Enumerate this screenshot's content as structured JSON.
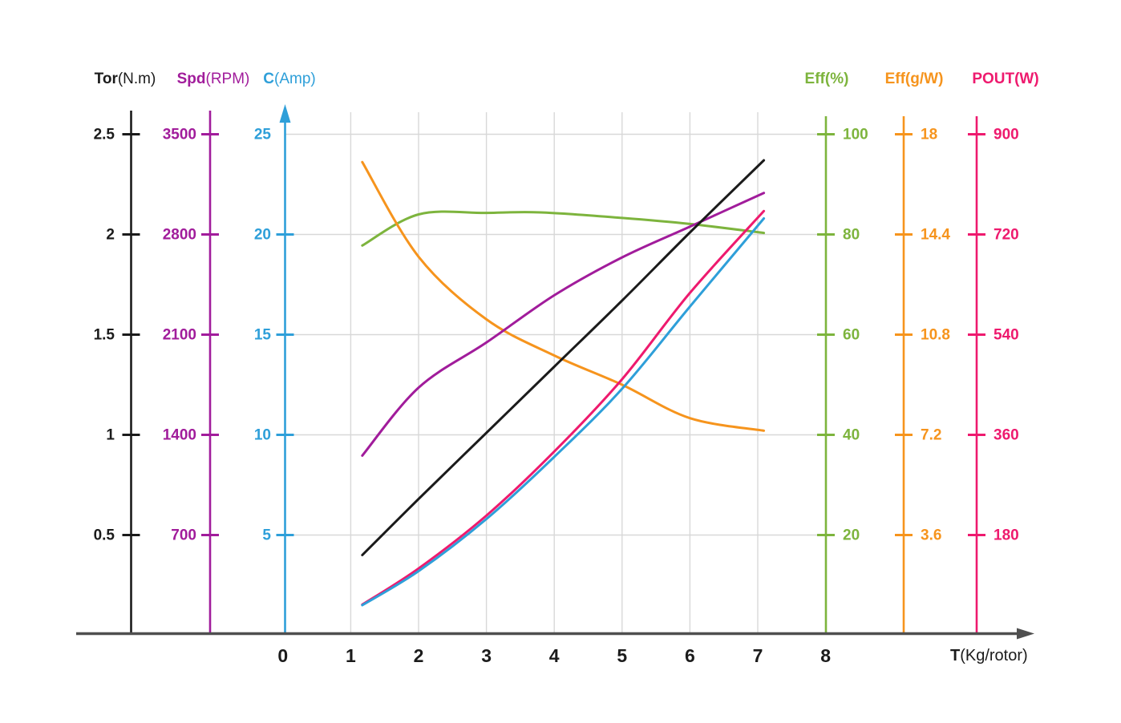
{
  "axes": {
    "left": [
      {
        "name": "torque",
        "label_bold": "Tor",
        "label_rest": "(N.m)",
        "color": "#1b1b1b",
        "ticks": [
          "2.5",
          "2",
          "1.5",
          "1",
          "0.5"
        ],
        "step": 0.5
      },
      {
        "name": "speed",
        "label_bold": "Spd",
        "label_rest": "(RPM)",
        "color": "#a11c9b",
        "ticks": [
          "3500",
          "2800",
          "2100",
          "1400",
          "700"
        ],
        "step": 700
      },
      {
        "name": "current",
        "label_bold": "C",
        "label_rest": "(Amp)",
        "color": "#2e9fd9",
        "ticks": [
          "25",
          "20",
          "15",
          "10",
          "5"
        ],
        "step": 5
      }
    ],
    "right": [
      {
        "name": "efficiency-percent",
        "label_bold": "Eff",
        "label_rest": "(%)",
        "color": "#7db43d",
        "ticks": [
          "100",
          "80",
          "60",
          "40",
          "20"
        ],
        "step": 20
      },
      {
        "name": "efficiency-g-per-w",
        "label_bold": "Eff",
        "label_rest": "(g/W)",
        "color": "#f6941d",
        "ticks": [
          "18",
          "14.4",
          "10.8",
          "7.2",
          "3.6"
        ],
        "step": 3.6
      },
      {
        "name": "power-output",
        "label_bold": "POUT",
        "label_rest": "(W)",
        "color": "#ee1a6e",
        "ticks": [
          "900",
          "720",
          "540",
          "360",
          "180"
        ],
        "step": 180
      }
    ],
    "x": {
      "title_bold": "T",
      "title_rest": "(Kg/rotor)",
      "ticks": [
        "0",
        "1",
        "2",
        "3",
        "4",
        "5",
        "6",
        "7",
        "8"
      ]
    }
  },
  "chart_data": {
    "type": "line",
    "xlabel": "T (Kg/rotor)",
    "x_range": [
      0,
      8
    ],
    "grid": true,
    "series": [
      {
        "name": "efficiency-percent",
        "axis": "Eff (%)",
        "color": "#7db43d",
        "step": 20,
        "points": [
          [
            1.17,
            77.8
          ],
          [
            2,
            84.0
          ],
          [
            3,
            84.3
          ],
          [
            3.8,
            84.4
          ],
          [
            5,
            83.3
          ],
          [
            6,
            82.1
          ],
          [
            7.09,
            80.3
          ]
        ]
      },
      {
        "name": "efficiency-g-per-w",
        "axis": "Eff (g/W)",
        "color": "#f6941d",
        "step": 3.6,
        "points": [
          [
            1.17,
            17.0
          ],
          [
            2,
            13.6
          ],
          [
            3,
            11.35
          ],
          [
            4,
            10.05
          ],
          [
            5,
            9.0
          ],
          [
            6,
            7.8
          ],
          [
            7.09,
            7.35
          ]
        ]
      },
      {
        "name": "speed",
        "axis": "Spd (RPM)",
        "color": "#a11c9b",
        "step": 700,
        "points": [
          [
            1.17,
            1255
          ],
          [
            2,
            1730
          ],
          [
            3,
            2045
          ],
          [
            4,
            2375
          ],
          [
            5,
            2640
          ],
          [
            6,
            2855
          ],
          [
            7.09,
            3090
          ]
        ]
      },
      {
        "name": "power-output",
        "axis": "POUT (W)",
        "color": "#ee1a6e",
        "step": 180,
        "points": [
          [
            1.17,
            55
          ],
          [
            2,
            120
          ],
          [
            3,
            215
          ],
          [
            4,
            330
          ],
          [
            5,
            460
          ],
          [
            6,
            615
          ],
          [
            7.09,
            762
          ]
        ]
      },
      {
        "name": "current",
        "axis": "C (Amp)",
        "color": "#2e9fd9",
        "step": 5,
        "points": [
          [
            1.17,
            1.5
          ],
          [
            2,
            3.2
          ],
          [
            3,
            5.8
          ],
          [
            4,
            8.9
          ],
          [
            5,
            12.3
          ],
          [
            6,
            16.4
          ],
          [
            7.09,
            20.8
          ]
        ]
      },
      {
        "name": "torque",
        "axis": "Tor (N.m)",
        "color": "#1b1b1b",
        "step": 0.5,
        "points": [
          [
            1.17,
            0.4
          ],
          [
            2,
            0.68
          ],
          [
            3,
            1.01
          ],
          [
            4,
            1.34
          ],
          [
            5,
            1.67
          ],
          [
            6,
            2.01
          ],
          [
            7.09,
            2.37
          ]
        ]
      }
    ]
  },
  "colors": {
    "axis_line": "#4f4f4f",
    "grid_line": "#d8d8d8",
    "background": "#ffffff"
  }
}
